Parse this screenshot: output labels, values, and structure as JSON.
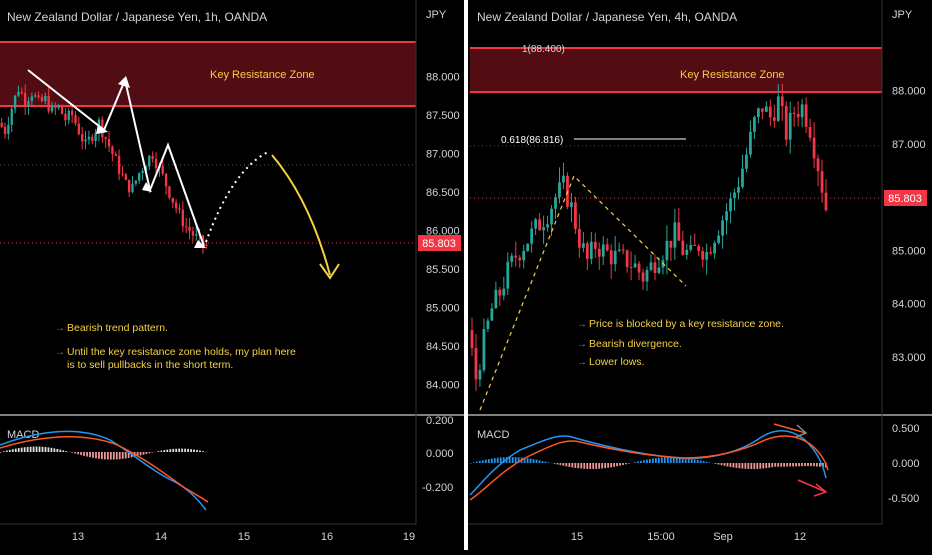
{
  "charts": [
    {
      "title": "New Zealand Dollar / Japanese Yen, 1h, OANDA",
      "currency": "JPY",
      "price_ticks": [
        "88.000",
        "87.500",
        "87.000",
        "86.500",
        "86.000",
        "85.500",
        "85.000",
        "84.500",
        "84.000"
      ],
      "macd_label": "MACD",
      "macd_ticks": [
        "0.200",
        "0.000",
        "-0.200"
      ],
      "time_ticks": [
        "13",
        "14",
        "15",
        "16",
        "19"
      ],
      "zone_label": "Key Resistance Zone",
      "last_price": "85.803",
      "notes": [
        "Bearish trend pattern.",
        "Until the key resistance zone holds, my plan here",
        "is to sell pullbacks in the short term."
      ]
    },
    {
      "title": "New Zealand Dollar / Japanese Yen, 4h, OANDA",
      "currency": "JPY",
      "price_ticks": [
        "88.000",
        "87.000",
        "86.000",
        "85.000",
        "84.000",
        "83.000"
      ],
      "macd_label": "MACD",
      "macd_ticks": [
        "0.500",
        "0.000",
        "-0.500"
      ],
      "time_ticks": [
        "15",
        "15:00",
        "Sep",
        "12"
      ],
      "zone_label": "Key Resistance Zone",
      "fib_top": "1(88.400)",
      "fib_mid": "0.618(86.816)",
      "last_price": "85.803",
      "notes": [
        "Price is blocked by a key resistance zone.",
        "Bearish divergence.",
        "Lower lows."
      ]
    }
  ],
  "chart_data": [
    {
      "type": "candlestick",
      "title": "New Zealand Dollar / Japanese Yen, 1h, OANDA",
      "ylim": [
        83.8,
        88.45
      ],
      "yticks": [
        88.0,
        87.5,
        87.0,
        86.5,
        86.0,
        85.5,
        85.0,
        84.5,
        84.0
      ],
      "x_ticks": [
        "13",
        "14",
        "15",
        "16",
        "19"
      ],
      "resistance_zone": [
        87.42,
        88.2
      ],
      "last_price": 85.803,
      "close_path": [
        87.4,
        87.3,
        87.6,
        87.85,
        87.7,
        87.8,
        87.65,
        87.7,
        87.55,
        87.6,
        87.45,
        87.5,
        87.3,
        87.1,
        87.25,
        87.4,
        87.2,
        87.0,
        86.8,
        86.6,
        86.55,
        86.75,
        86.9,
        87.0,
        86.8,
        86.6,
        86.4,
        86.2,
        86.05,
        85.95,
        85.85,
        85.8
      ]
    },
    {
      "type": "candlestick",
      "title": "New Zealand Dollar / Japanese Yen, 4h, OANDA",
      "ylim": [
        82.0,
        88.8
      ],
      "yticks": [
        88.0,
        87.0,
        86.0,
        85.0,
        84.0,
        83.0
      ],
      "x_ticks": [
        "15",
        "15:00",
        "Sep",
        "12"
      ],
      "resistance_zone": [
        87.6,
        88.4
      ],
      "fib_levels": [
        {
          "ratio": 1,
          "value": 88.4
        },
        {
          "ratio": 0.618,
          "value": 86.816
        }
      ],
      "last_price": 85.803,
      "close_path": [
        83.5,
        82.6,
        83.3,
        83.9,
        84.2,
        84.6,
        84.9,
        85.1,
        85.3,
        85.5,
        85.7,
        86.0,
        86.2,
        85.8,
        85.2,
        84.8,
        85.1,
        85.0,
        84.9,
        84.85,
        84.8,
        84.7,
        84.5,
        84.7,
        84.9,
        85.1,
        85.3,
        85.0,
        84.9,
        85.1,
        84.95,
        85.3,
        85.6,
        85.9,
        86.3,
        86.8,
        87.4,
        87.7,
        87.5,
        87.8,
        87.2,
        87.6,
        87.7,
        87.3,
        86.6,
        85.8
      ]
    }
  ]
}
